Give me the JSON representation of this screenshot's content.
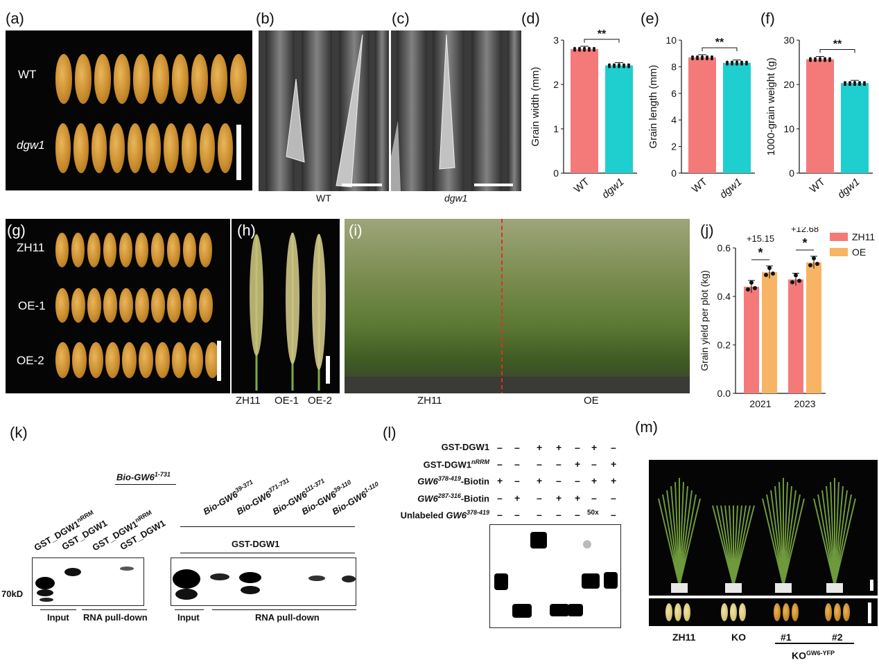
{
  "panel_labels": {
    "a": "(a)",
    "b": "(b)",
    "c": "(c)",
    "d": "(d)",
    "e": "(e)",
    "f": "(f)",
    "g": "(g)",
    "h": "(h)",
    "i": "(i)",
    "j": "(j)",
    "k": "(k)",
    "l": "(l)",
    "m": "(m)"
  },
  "panel_a": {
    "wt": "WT",
    "mutant": "dgw1"
  },
  "panel_bc": {
    "b_caption": "WT",
    "c_caption": "dgw1"
  },
  "panel_g": {
    "rows": [
      "ZH11",
      "OE-1",
      "OE-2"
    ]
  },
  "panel_h": {
    "labels": [
      "ZH11",
      "OE-1",
      "OE-2"
    ]
  },
  "panel_i": {
    "left": "ZH11",
    "right": "OE"
  },
  "chart_data": [
    {
      "type": "bar",
      "panel": "d",
      "categories": [
        "WT",
        "dgw1"
      ],
      "values": [
        2.8,
        2.43
      ],
      "ylabel": "Grain width (mm)",
      "ylim": [
        0,
        3
      ],
      "yticks": [
        "0",
        "1",
        "2",
        "3"
      ],
      "significance": "**",
      "colors": [
        "#f47a7a",
        "#1fcfcf"
      ]
    },
    {
      "type": "bar",
      "panel": "e",
      "categories": [
        "WT",
        "dgw1"
      ],
      "values": [
        8.7,
        8.3
      ],
      "ylabel": "Grain length (mm)",
      "ylim": [
        0,
        10
      ],
      "yticks": [
        "0",
        "2",
        "4",
        "6",
        "8",
        "10"
      ],
      "significance": "**",
      "colors": [
        "#f47a7a",
        "#1fcfcf"
      ]
    },
    {
      "type": "bar",
      "panel": "f",
      "categories": [
        "WT",
        "dgw1"
      ],
      "values": [
        25.7,
        20.3
      ],
      "ylabel": "1000-grain weight (g)",
      "ylim": [
        0,
        30
      ],
      "yticks": [
        "0",
        "10",
        "20",
        "30"
      ],
      "significance": "**",
      "colors": [
        "#f47a7a",
        "#1fcfcf"
      ]
    },
    {
      "type": "bar",
      "panel": "j",
      "categories": [
        "2021",
        "2023"
      ],
      "series": [
        {
          "name": "ZH11",
          "values": [
            0.44,
            0.47
          ]
        },
        {
          "name": "OE",
          "values": [
            0.5,
            0.54
          ]
        }
      ],
      "ylabel": "Grain yield per plot (kg)",
      "ylim": [
        0,
        0.6
      ],
      "yticks": [
        "0.0",
        "0.2",
        "0.4",
        "0.6"
      ],
      "annotations": [
        "+15.15",
        "+12.68"
      ],
      "significance": [
        "*",
        "*"
      ],
      "colors": [
        "#f47a7a",
        "#f7b464"
      ],
      "legend": "top-right"
    }
  ],
  "panel_k": {
    "bio_label": "Bio-GW6",
    "bio_sup": "1-731",
    "left_lanes": [
      {
        "t": "GST_DGW1",
        "s": "nRRM"
      },
      {
        "t": "GST_DGW1",
        "s": ""
      },
      {
        "t": "GST_DGW1",
        "s": "nRRM"
      },
      {
        "t": "GST_DGW1",
        "s": ""
      }
    ],
    "right_lanes": [
      {
        "t": "Bio-GW6",
        "s": "39-371"
      },
      {
        "t": "Bio-GW6",
        "s": "371-731"
      },
      {
        "t": "Bio-GW6",
        "s": "111-371"
      },
      {
        "t": "Bio-GW6",
        "s": "39-110"
      },
      {
        "t": "Bio-GW6",
        "s": "1-110"
      }
    ],
    "gst": "GST-DGW1",
    "marker": "70kD",
    "input": "Input",
    "pulldown": "RNA pull-down"
  },
  "panel_l": {
    "rows": [
      {
        "label": "GST-DGW1",
        "sup": "",
        "vals": [
          "–",
          "–",
          "+",
          "+",
          "–",
          "+",
          "–"
        ]
      },
      {
        "label": "GST-DGW1",
        "sup": "nRRM",
        "vals": [
          "–",
          "–",
          "–",
          "–",
          "+",
          "–",
          "+"
        ]
      },
      {
        "label": "GW6",
        "sup": "378-419",
        "suffix": "-Biotin",
        "vals": [
          "+",
          "–",
          "+",
          "–",
          "–",
          "+",
          "+"
        ]
      },
      {
        "label": "GW6",
        "sup": "287-316",
        "suffix": "-Biotin",
        "vals": [
          "–",
          "+",
          "–",
          "+",
          "+",
          "–",
          "–"
        ]
      },
      {
        "label": "Unlabeled GW6",
        "sup": "378-419",
        "suffix": "",
        "vals": [
          "–",
          "–",
          "–",
          "–",
          "–",
          "50x",
          "–"
        ]
      }
    ]
  },
  "panel_m": {
    "labels": [
      "ZH11",
      "KO",
      "#1",
      "#2"
    ],
    "group": "KO",
    "group_sup": "GW6-YFP"
  }
}
